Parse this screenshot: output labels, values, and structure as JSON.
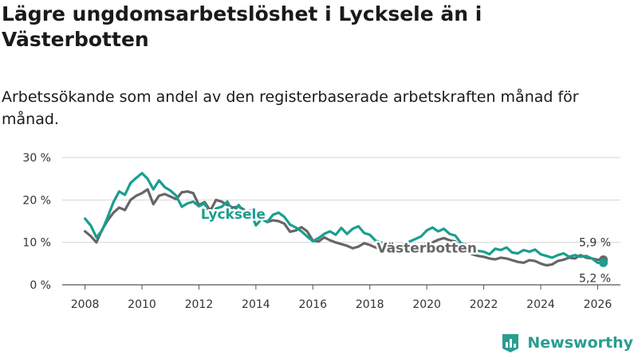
{
  "chart_data": {
    "type": "line",
    "title": "Lägre ungdomsarbetslöshet i Lycksele än i Västerbotten",
    "subtitle": "Arbetssökande som andel av den registerbaserade arbetskraften månad för månad.",
    "xlabel": "",
    "ylabel": "",
    "xlim": [
      2007.2,
      2026.8
    ],
    "ylim": [
      0,
      30
    ],
    "y_ticks": [
      {
        "value": 0,
        "label": "0 %"
      },
      {
        "value": 10,
        "label": "10 %"
      },
      {
        "value": 20,
        "label": "20 %"
      },
      {
        "value": 30,
        "label": "30 %"
      }
    ],
    "x_ticks": [
      {
        "value": 2008,
        "label": "2008"
      },
      {
        "value": 2010,
        "label": "2010"
      },
      {
        "value": 2012,
        "label": "2012"
      },
      {
        "value": 2014,
        "label": "2014"
      },
      {
        "value": 2016,
        "label": "2016"
      },
      {
        "value": 2018,
        "label": "2018"
      },
      {
        "value": 2020,
        "label": "2020"
      },
      {
        "value": 2022,
        "label": "2022"
      },
      {
        "value": 2024,
        "label": "2024"
      },
      {
        "value": 2026,
        "label": "2026"
      }
    ],
    "grid": true,
    "series": [
      {
        "name": "Lycksele",
        "color": "#1a9e8f",
        "x": [
          2008.0,
          2008.2,
          2008.4,
          2008.6,
          2008.8,
          2009.0,
          2009.2,
          2009.4,
          2009.6,
          2009.8,
          2010.0,
          2010.2,
          2010.4,
          2010.6,
          2010.8,
          2011.0,
          2011.2,
          2011.4,
          2011.6,
          2011.8,
          2012.0,
          2012.2,
          2012.4,
          2012.6,
          2012.8,
          2013.0,
          2013.2,
          2013.4,
          2013.6,
          2013.8,
          2014.0,
          2014.2,
          2014.4,
          2014.6,
          2014.8,
          2015.0,
          2015.2,
          2015.4,
          2015.6,
          2015.8,
          2016.0,
          2016.2,
          2016.4,
          2016.6,
          2016.8,
          2017.0,
          2017.2,
          2017.4,
          2017.6,
          2017.8,
          2018.0,
          2018.2,
          2018.4,
          2018.6,
          2018.8,
          2019.0,
          2019.2,
          2019.4,
          2019.6,
          2019.8,
          2020.0,
          2020.2,
          2020.4,
          2020.6,
          2020.8,
          2021.0,
          2021.2,
          2021.4,
          2021.6,
          2021.8,
          2022.0,
          2022.2,
          2022.4,
          2022.6,
          2022.8,
          2023.0,
          2023.2,
          2023.4,
          2023.6,
          2023.8,
          2024.0,
          2024.2,
          2024.4,
          2024.6,
          2024.8,
          2025.0,
          2025.2,
          2025.4,
          2025.6,
          2025.8,
          2026.0,
          2026.2
        ],
        "values": [
          15.6,
          14.0,
          11.2,
          12.8,
          16.0,
          19.5,
          22.0,
          21.2,
          24.0,
          25.2,
          26.3,
          25.0,
          22.5,
          24.6,
          23.0,
          22.2,
          21.0,
          18.4,
          19.2,
          19.6,
          18.5,
          19.2,
          15.8,
          18.0,
          18.4,
          19.6,
          17.0,
          18.8,
          16.5,
          17.5,
          14.0,
          15.5,
          14.8,
          16.5,
          17.0,
          16.0,
          14.2,
          13.5,
          12.6,
          11.4,
          10.3,
          11.0,
          12.0,
          12.6,
          11.8,
          13.4,
          12.0,
          13.2,
          13.8,
          12.2,
          11.8,
          10.4,
          10.0,
          9.5,
          9.0,
          9.2,
          9.6,
          10.2,
          10.8,
          11.4,
          12.8,
          13.5,
          12.6,
          13.2,
          12.0,
          11.6,
          9.8,
          9.4,
          8.6,
          8.0,
          7.8,
          7.2,
          8.5,
          8.2,
          8.8,
          7.6,
          7.4,
          8.2,
          7.8,
          8.3,
          7.2,
          6.8,
          6.4,
          7.0,
          7.4,
          6.6,
          7.0,
          6.6,
          6.8,
          6.2,
          5.2,
          5.2
        ],
        "end_label": "5,2 %"
      },
      {
        "name": "Västerbotten",
        "color": "#666666",
        "x": [
          2008.0,
          2008.2,
          2008.4,
          2008.6,
          2008.8,
          2009.0,
          2009.2,
          2009.4,
          2009.6,
          2009.8,
          2010.0,
          2010.2,
          2010.4,
          2010.6,
          2010.8,
          2011.0,
          2011.2,
          2011.4,
          2011.6,
          2011.8,
          2012.0,
          2012.2,
          2012.4,
          2012.6,
          2012.8,
          2013.0,
          2013.2,
          2013.4,
          2013.6,
          2013.8,
          2014.0,
          2014.2,
          2014.4,
          2014.6,
          2014.8,
          2015.0,
          2015.2,
          2015.4,
          2015.6,
          2015.8,
          2016.0,
          2016.2,
          2016.4,
          2016.6,
          2016.8,
          2017.0,
          2017.2,
          2017.4,
          2017.6,
          2017.8,
          2018.0,
          2018.2,
          2018.4,
          2018.6,
          2018.8,
          2019.0,
          2019.2,
          2019.4,
          2019.6,
          2019.8,
          2020.0,
          2020.2,
          2020.4,
          2020.6,
          2020.8,
          2021.0,
          2021.2,
          2021.4,
          2021.6,
          2021.8,
          2022.0,
          2022.2,
          2022.4,
          2022.6,
          2022.8,
          2023.0,
          2023.2,
          2023.4,
          2023.6,
          2023.8,
          2024.0,
          2024.2,
          2024.4,
          2024.6,
          2024.8,
          2025.0,
          2025.2,
          2025.4,
          2025.6,
          2025.8,
          2026.0,
          2026.2
        ],
        "values": [
          12.6,
          11.5,
          10.0,
          13.0,
          15.2,
          17.0,
          18.2,
          17.6,
          20.0,
          21.0,
          21.6,
          22.5,
          19.0,
          21.0,
          21.4,
          20.8,
          20.2,
          21.8,
          22.0,
          21.6,
          18.8,
          19.5,
          17.5,
          20.0,
          19.6,
          18.8,
          18.2,
          18.5,
          17.6,
          17.2,
          16.0,
          15.6,
          14.8,
          15.2,
          15.0,
          14.4,
          12.5,
          12.8,
          13.6,
          12.6,
          10.4,
          10.2,
          11.2,
          10.5,
          10.0,
          9.6,
          9.2,
          8.6,
          9.0,
          9.8,
          9.4,
          8.8,
          8.5,
          8.2,
          7.8,
          7.6,
          8.0,
          8.4,
          8.8,
          9.2,
          9.8,
          10.0,
          10.6,
          11.0,
          10.5,
          10.2,
          8.8,
          8.0,
          7.2,
          6.8,
          6.6,
          6.2,
          6.0,
          6.4,
          6.2,
          5.8,
          5.4,
          5.2,
          5.8,
          5.6,
          5.0,
          4.6,
          4.8,
          5.6,
          5.9,
          6.4,
          6.2,
          7.0,
          6.4,
          6.2,
          5.9,
          5.9
        ],
        "end_label": "5,9 %"
      }
    ]
  },
  "brand": {
    "name": "Newsworthy",
    "color": "#2a9d8f"
  }
}
